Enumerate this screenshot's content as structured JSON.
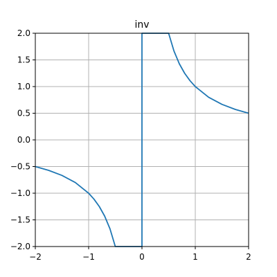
{
  "chart_data": {
    "type": "line",
    "title": "inv",
    "xlabel": "",
    "ylabel": "",
    "xlim": [
      -2,
      2
    ],
    "ylim": [
      -2,
      2
    ],
    "grid": true,
    "x_ticks": [
      -2,
      -1,
      0,
      1,
      2
    ],
    "x_tick_labels": [
      "−2",
      "−1",
      "0",
      "1",
      "2"
    ],
    "y_ticks": [
      2.0,
      1.5,
      1.0,
      0.5,
      0.0,
      -0.5,
      -1.0,
      -1.5,
      -2.0
    ],
    "y_tick_labels": [
      "2.0",
      "1.5",
      "1.0",
      "0.5",
      "0.0",
      "−0.5",
      "−1.0",
      "−1.5",
      "−2.0"
    ],
    "series": [
      {
        "color": "#1f77b4",
        "x": [
          -2.0,
          -1.75,
          -1.5,
          -1.25,
          -1.0,
          -0.9,
          -0.8,
          -0.7,
          -0.6,
          -0.5,
          0.0,
          0.0,
          0.5,
          0.6,
          0.7,
          0.8,
          0.9,
          1.0,
          1.25,
          1.5,
          1.75,
          2.0
        ],
        "y": [
          -0.5,
          -0.5714,
          -0.6667,
          -0.8,
          -1.0,
          -1.1111,
          -1.25,
          -1.4286,
          -1.6667,
          -2.0,
          -2.0,
          2.0,
          2.0,
          1.6667,
          1.4286,
          1.25,
          1.1111,
          1.0,
          0.8,
          0.6667,
          0.5714,
          0.5
        ]
      }
    ],
    "grid_color": "#b0b0b0",
    "axis_color": "#000000"
  }
}
